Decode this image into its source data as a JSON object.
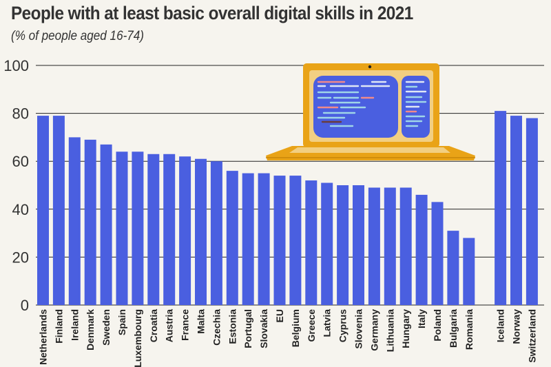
{
  "chart_data": {
    "type": "bar",
    "title": "People with at least basic overall digital skills  in 2021",
    "subtitle": "(% of people aged 16-74)",
    "xlabel": "",
    "ylabel": "",
    "ylim": [
      0,
      100
    ],
    "yticks": [
      0,
      20,
      40,
      60,
      80,
      100
    ],
    "grid": true,
    "categories": [
      "Netherlands",
      "Finland",
      "Ireland",
      "Denmark",
      "Sweden",
      "Spain",
      "Luxembourg",
      "Croatia",
      "Austria",
      "France",
      "Malta",
      "Czechia",
      "Estonia",
      "Portugal",
      "Slovakia",
      "EU",
      "Belgium",
      "Greece",
      "Latvia",
      "Cyprus",
      "Slovenia",
      "Germany",
      "Lithuania",
      "Hungary",
      "Italy",
      "Poland",
      "Bulgaria",
      "Romania",
      "",
      "Iceland",
      "Norway",
      "Switzerland"
    ],
    "values": [
      79,
      79,
      70,
      69,
      67,
      64,
      64,
      63,
      63,
      62,
      61,
      60,
      56,
      55,
      55,
      54,
      54,
      52,
      51,
      50,
      50,
      49,
      49,
      49,
      46,
      43,
      31,
      28,
      null,
      81,
      79,
      78
    ],
    "bar_color": "#4a5fe0"
  },
  "illustration": "laptop-icon",
  "colors": {
    "background": "#f6f4ee",
    "laptop_body": "#e9a317",
    "laptop_screen_bg": "#f2cf82",
    "laptop_screen": "#4a5fe0"
  }
}
